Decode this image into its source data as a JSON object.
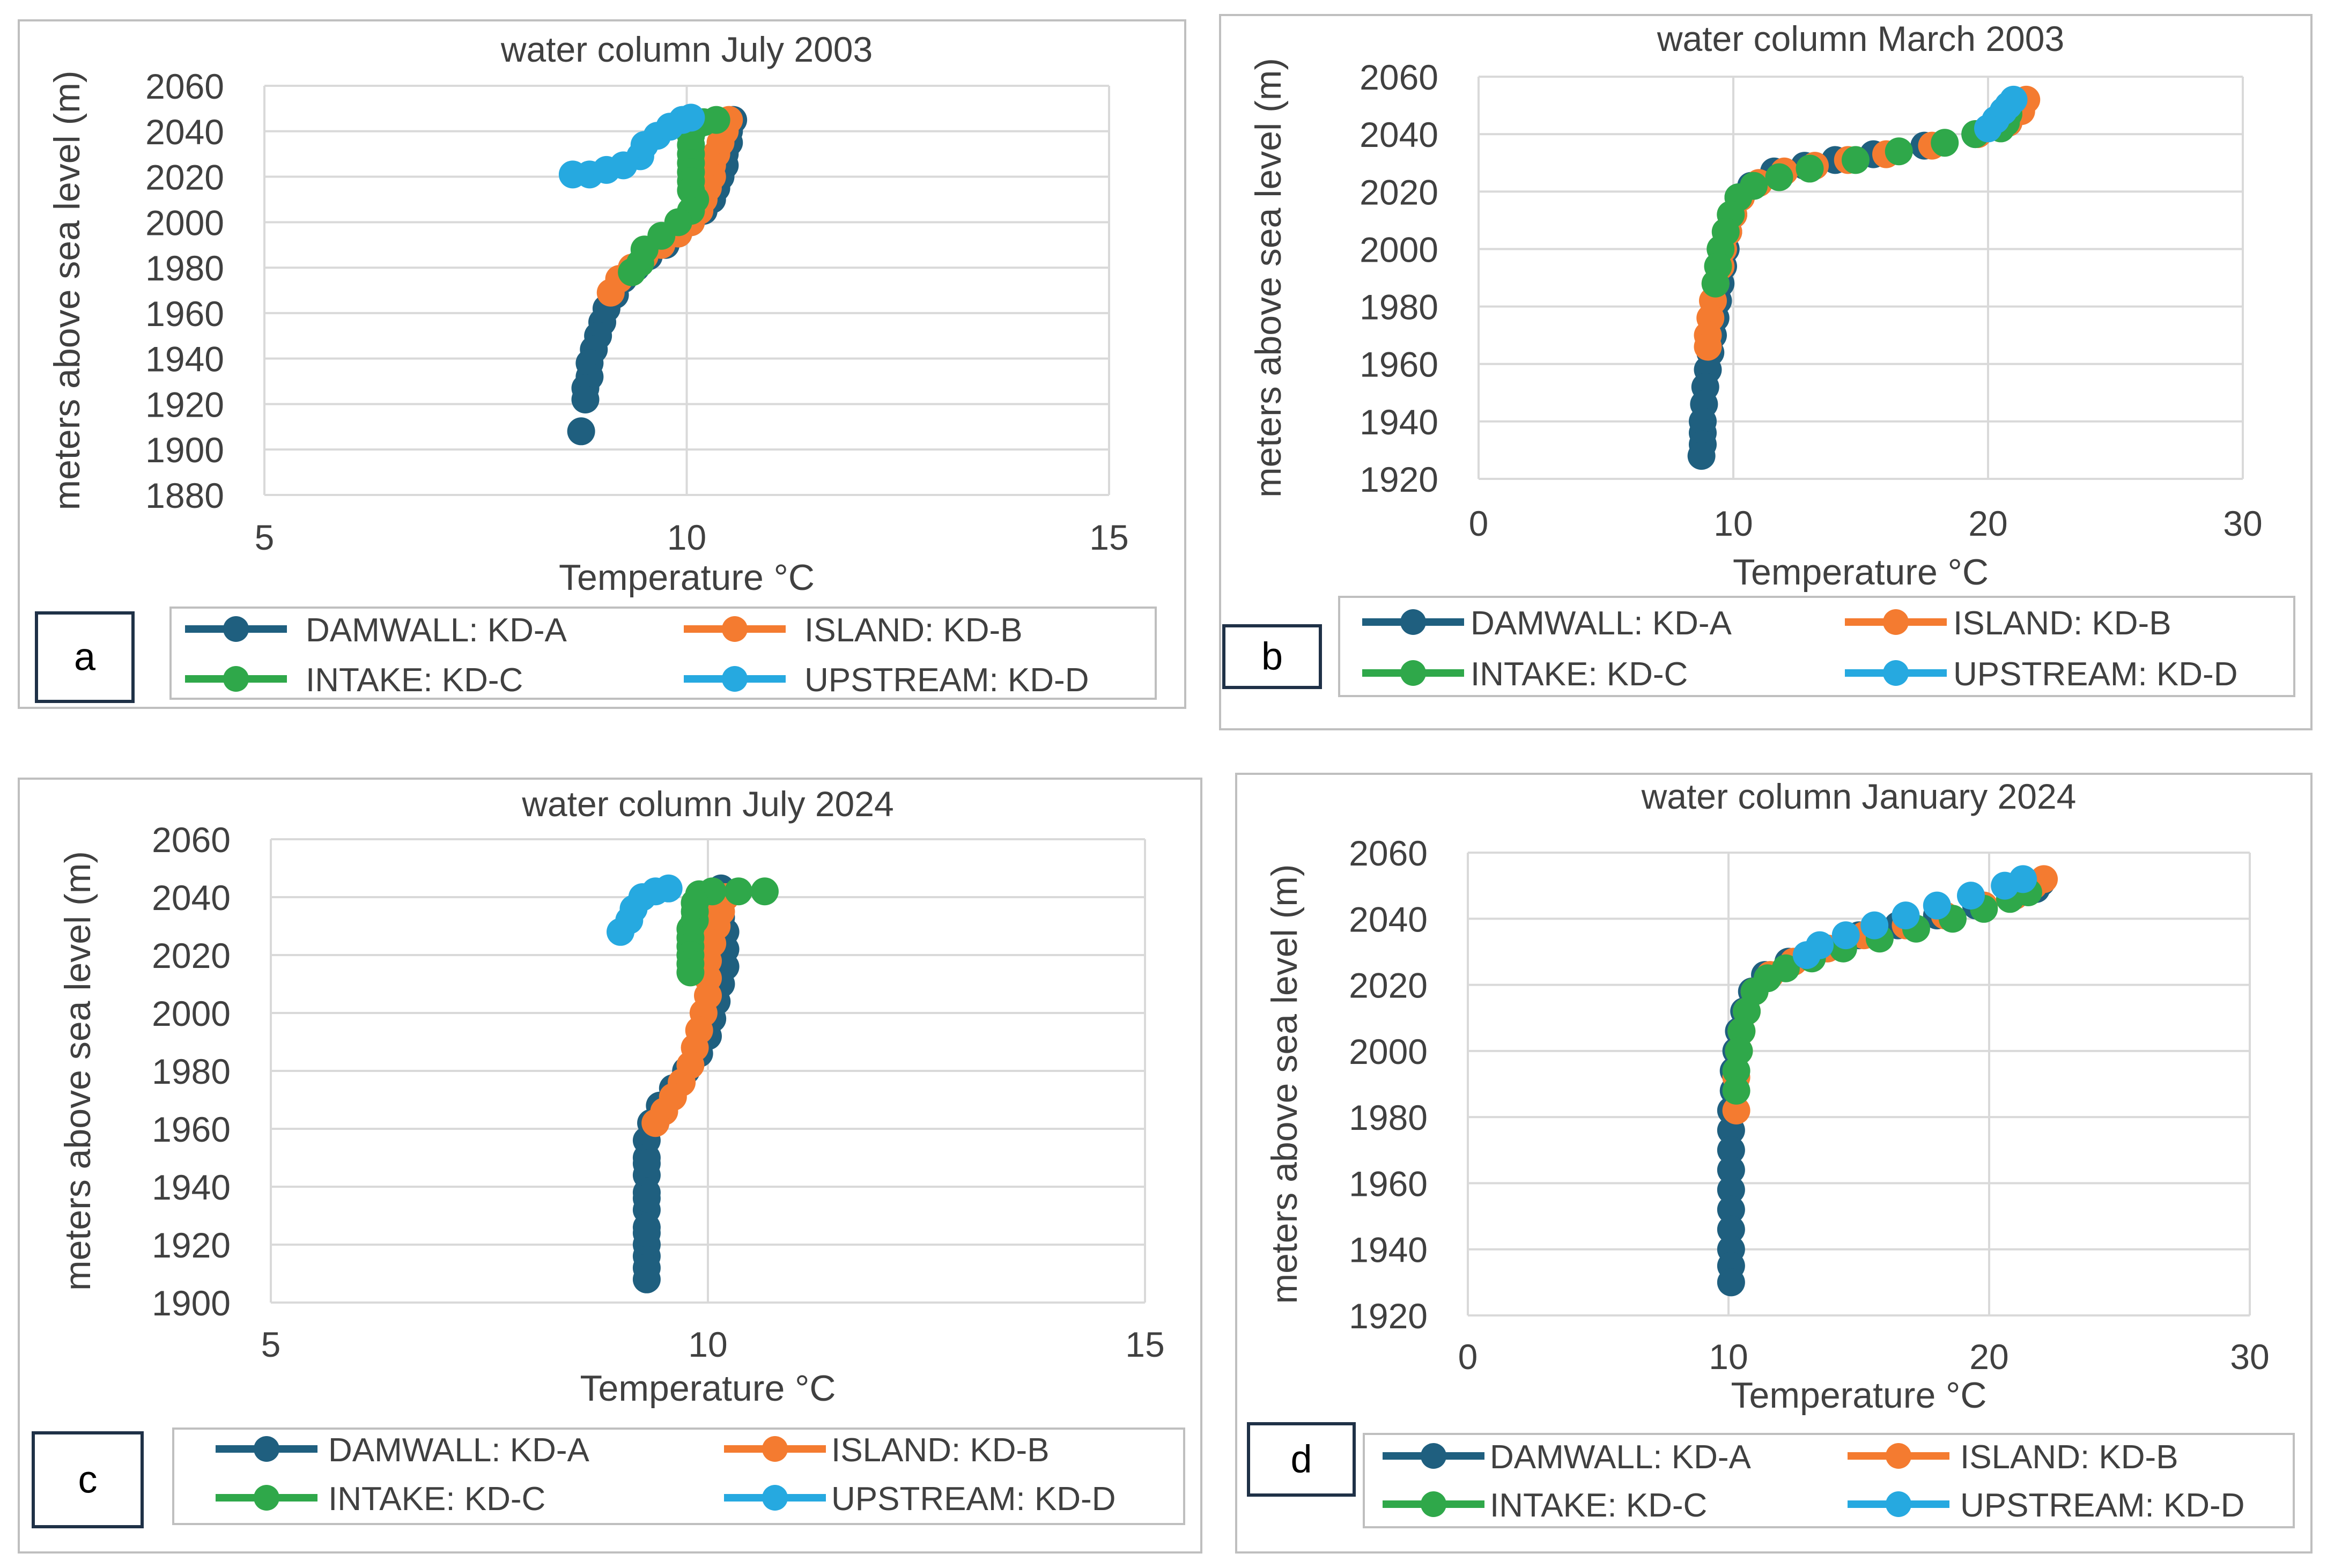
{
  "colors": {
    "DAMWALL": "#1f5f7f",
    "ISLAND": "#f47b30",
    "INTAKE": "#2fa84a",
    "UPSTREAM": "#26a9e0",
    "grid": "#d9d9d9",
    "frame": "#bfbfbf",
    "text": "#404040"
  },
  "chart_data": [
    {
      "panel": "a",
      "type": "scatter",
      "title": "water column July 2003",
      "xlabel": "Temperature °C",
      "ylabel": "meters above sea level (m)",
      "xlim": [
        5,
        15
      ],
      "xticks": [
        5,
        10,
        15
      ],
      "ylim": [
        1880,
        2060
      ],
      "yticks": [
        1880,
        1900,
        1920,
        1940,
        1960,
        1980,
        2000,
        2020,
        2040,
        2060
      ],
      "grid": true,
      "legend": "bottom",
      "series": [
        {
          "name": "DAMWALL: KD-A",
          "key": "DAMWALL",
          "x": [
            10.55,
            10.5,
            10.5,
            10.45,
            10.45,
            10.4,
            10.35,
            10.3,
            10.2,
            10.05,
            9.9,
            9.75,
            9.55,
            9.4,
            9.25,
            9.15,
            9.05,
            9.0,
            8.95,
            8.9,
            8.85,
            8.85,
            8.8,
            8.8,
            8.75
          ],
          "y": [
            2045,
            2040,
            2035,
            2030,
            2025,
            2020,
            2015,
            2010,
            2005,
            2000,
            1995,
            1990,
            1985,
            1980,
            1975,
            1968,
            1962,
            1956,
            1950,
            1944,
            1938,
            1932,
            1927,
            1922,
            1908
          ]
        },
        {
          "name": "ISLAND: KD-B",
          "key": "ISLAND",
          "x": [
            10.5,
            10.45,
            10.4,
            10.35,
            10.3,
            10.3,
            10.25,
            10.2,
            10.15,
            10.05,
            9.9,
            9.7,
            9.5,
            9.35,
            9.2,
            9.1
          ],
          "y": [
            2045,
            2040,
            2035,
            2030,
            2025,
            2020,
            2015,
            2010,
            2005,
            2000,
            1995,
            1990,
            1985,
            1980,
            1975,
            1969
          ]
        },
        {
          "name": "INTAKE: KD-C",
          "key": "INTAKE",
          "x": [
            10.35,
            10.2,
            10.1,
            10.05,
            10.05,
            10.05,
            10.05,
            10.05,
            10.05,
            10.05,
            10.1,
            10.05,
            9.9,
            9.7,
            9.5,
            9.45,
            9.35
          ],
          "y": [
            2045,
            2044,
            2042,
            2038,
            2034,
            2030,
            2026,
            2022,
            2018,
            2014,
            2010,
            2005,
            2000,
            1994,
            1988,
            1982,
            1978
          ]
        },
        {
          "name": "UPSTREAM: KD-D",
          "key": "UPSTREAM",
          "x": [
            8.65,
            8.85,
            9.05,
            9.25,
            9.45,
            9.5,
            9.65,
            9.8,
            9.95,
            10.05
          ],
          "y": [
            2021,
            2021,
            2023,
            2025,
            2029,
            2034,
            2038,
            2042,
            2045,
            2046
          ]
        }
      ]
    },
    {
      "panel": "b",
      "type": "scatter",
      "title": "water column March 2003",
      "xlabel": "Temperature °C",
      "ylabel": "meters above sea level (m)",
      "xlim": [
        0,
        30
      ],
      "xticks": [
        0,
        10,
        20,
        30
      ],
      "ylim": [
        1920,
        2060
      ],
      "yticks": [
        1920,
        1940,
        1960,
        1980,
        2000,
        2020,
        2040,
        2060
      ],
      "grid": true,
      "legend": "bottom",
      "series": [
        {
          "name": "DAMWALL: KD-A",
          "key": "DAMWALL",
          "x": [
            21.3,
            21.2,
            20.8,
            19.5,
            17.5,
            15.5,
            14.0,
            12.8,
            11.6,
            10.7,
            10.2,
            10.0,
            9.8,
            9.7,
            9.6,
            9.5,
            9.4,
            9.3,
            9.2,
            9.1,
            9.0,
            8.9,
            8.85,
            8.8,
            8.8,
            8.8,
            8.75
          ],
          "y": [
            2051,
            2048,
            2044,
            2040,
            2036,
            2033,
            2031,
            2029,
            2027,
            2022,
            2018,
            2012,
            2006,
            2000,
            1994,
            1988,
            1982,
            1976,
            1970,
            1964,
            1958,
            1952,
            1946,
            1940,
            1936,
            1932,
            1928
          ]
        },
        {
          "name": "ISLAND: KD-B",
          "key": "ISLAND",
          "x": [
            21.5,
            21.3,
            20.8,
            19.6,
            17.8,
            16.0,
            14.5,
            13.2,
            12.0,
            11.0,
            10.3,
            10.0,
            9.8,
            9.6,
            9.5,
            9.3,
            9.2,
            9.1,
            9.0,
            9.0
          ],
          "y": [
            2052,
            2048,
            2044,
            2040,
            2036,
            2033,
            2031,
            2029,
            2027,
            2023,
            2018,
            2012,
            2006,
            2000,
            1994,
            1988,
            1982,
            1976,
            1970,
            1966
          ]
        },
        {
          "name": "INTAKE: KD-C",
          "key": "INTAKE",
          "x": [
            20.8,
            20.7,
            20.5,
            19.5,
            18.3,
            16.5,
            14.8,
            13.0,
            11.8,
            10.8,
            10.2,
            9.9,
            9.7,
            9.5,
            9.4,
            9.3
          ],
          "y": [
            2047,
            2044,
            2042,
            2040,
            2037,
            2034,
            2031,
            2028,
            2025,
            2022,
            2018,
            2012,
            2006,
            2000,
            1994,
            1988
          ]
        },
        {
          "name": "UPSTREAM: KD-D",
          "key": "UPSTREAM",
          "x": [
            21.0,
            20.8,
            20.6,
            20.3,
            20.0
          ],
          "y": [
            2052,
            2050,
            2048,
            2045,
            2042
          ]
        }
      ]
    },
    {
      "panel": "c",
      "type": "scatter",
      "title": "water column July 2024",
      "xlabel": "Temperature °C",
      "ylabel": "meters above sea level (m)",
      "xlim": [
        5,
        15
      ],
      "xticks": [
        5,
        10,
        15
      ],
      "ylim": [
        1900,
        2060
      ],
      "yticks": [
        1900,
        1920,
        1940,
        1960,
        1980,
        2000,
        2020,
        2040,
        2060
      ],
      "grid": true,
      "legend": "bottom",
      "series": [
        {
          "name": "DAMWALL: KD-A",
          "key": "DAMWALL",
          "x": [
            10.15,
            10.15,
            10.15,
            10.2,
            10.2,
            10.2,
            10.15,
            10.1,
            10.05,
            10.0,
            9.9,
            9.75,
            9.6,
            9.45,
            9.35,
            9.3,
            9.3,
            9.3,
            9.3,
            9.3,
            9.3,
            9.3,
            9.3,
            9.3,
            9.3,
            9.3,
            9.3,
            9.3
          ],
          "y": [
            2043,
            2038,
            2033,
            2028,
            2022,
            2016,
            2010,
            2004,
            1998,
            1992,
            1986,
            1980,
            1974,
            1968,
            1962,
            1956,
            1950,
            1944,
            1938,
            1932,
            1926,
            1920,
            1916,
            1912,
            1908,
            1948,
            1936,
            1924
          ]
        },
        {
          "name": "ISLAND: KD-B",
          "key": "ISLAND",
          "x": [
            10.2,
            10.15,
            10.1,
            10.05,
            10.0,
            10.0,
            10.0,
            9.95,
            9.9,
            9.85,
            9.8,
            9.7,
            9.6,
            9.5,
            9.4
          ],
          "y": [
            2040,
            2035,
            2030,
            2024,
            2018,
            2012,
            2006,
            2000,
            1994,
            1988,
            1982,
            1976,
            1971,
            1966,
            1962
          ]
        },
        {
          "name": "INTAKE: KD-C",
          "key": "INTAKE",
          "x": [
            10.65,
            10.35,
            10.05,
            9.9,
            9.85,
            9.85,
            9.85,
            9.8,
            9.8,
            9.8,
            9.8,
            9.8,
            9.8,
            9.85
          ],
          "y": [
            2042,
            2042,
            2042,
            2041,
            2038,
            2035,
            2032,
            2029,
            2026,
            2023,
            2020,
            2017,
            2014,
            2038
          ]
        },
        {
          "name": "UPSTREAM: KD-D",
          "key": "UPSTREAM",
          "x": [
            9.0,
            9.1,
            9.15,
            9.25,
            9.4,
            9.55
          ],
          "y": [
            2028,
            2032,
            2036,
            2040,
            2042,
            2043
          ]
        }
      ]
    },
    {
      "panel": "d",
      "type": "scatter",
      "title": "water column January 2024",
      "xlabel": "Temperature °C",
      "ylabel": "meters above sea level (m)",
      "xlim": [
        0,
        30
      ],
      "xticks": [
        0,
        10,
        20,
        30
      ],
      "ylim": [
        1920,
        2060
      ],
      "yticks": [
        1920,
        1940,
        1960,
        1980,
        2000,
        2020,
        2040,
        2060
      ],
      "grid": true,
      "legend": "bottom",
      "series": [
        {
          "name": "DAMWALL: KD-A",
          "key": "DAMWALL",
          "x": [
            22.0,
            21.8,
            21.0,
            19.5,
            18.0,
            16.5,
            15.0,
            13.5,
            12.3,
            11.4,
            10.9,
            10.6,
            10.4,
            10.3,
            10.2,
            10.2,
            10.1,
            10.1,
            10.1,
            10.1,
            10.1,
            10.1,
            10.1,
            10.1,
            10.1,
            10.1
          ],
          "y": [
            2051,
            2049,
            2047,
            2044,
            2041,
            2038,
            2035,
            2031,
            2027,
            2023,
            2018,
            2012,
            2006,
            2000,
            1994,
            1988,
            1982,
            1976,
            1970,
            1964,
            1958,
            1952,
            1946,
            1940,
            1935,
            1930
          ]
        },
        {
          "name": "ISLAND: KD-B",
          "key": "ISLAND",
          "x": [
            22.1,
            21.7,
            21.0,
            19.8,
            18.3,
            16.8,
            15.2,
            13.8,
            12.5,
            11.6,
            11.0,
            10.7,
            10.5,
            10.4,
            10.3,
            10.3
          ],
          "y": [
            2052,
            2050,
            2047,
            2044,
            2041,
            2038,
            2035,
            2031,
            2027,
            2023,
            2018,
            2012,
            2006,
            2000,
            1992,
            1982
          ]
        },
        {
          "name": "INTAKE: KD-C",
          "key": "INTAKE",
          "x": [
            21.5,
            20.8,
            19.8,
            18.6,
            17.2,
            15.8,
            14.4,
            13.2,
            12.2,
            11.5,
            11.0,
            10.7,
            10.5,
            10.4,
            10.3,
            10.3
          ],
          "y": [
            2048,
            2046,
            2043,
            2040,
            2037,
            2034,
            2031,
            2028,
            2025,
            2022,
            2018,
            2012,
            2006,
            2000,
            1994,
            1988
          ]
        },
        {
          "name": "UPSTREAM: KD-D",
          "key": "UPSTREAM",
          "x": [
            21.3,
            20.6,
            19.3,
            18.0,
            16.8,
            15.6,
            14.5,
            13.5,
            13.0
          ],
          "y": [
            2052,
            2050,
            2047,
            2044,
            2041,
            2038,
            2035,
            2032,
            2029
          ]
        }
      ]
    }
  ],
  "panel_labels": [
    "a",
    "b",
    "c",
    "d"
  ]
}
